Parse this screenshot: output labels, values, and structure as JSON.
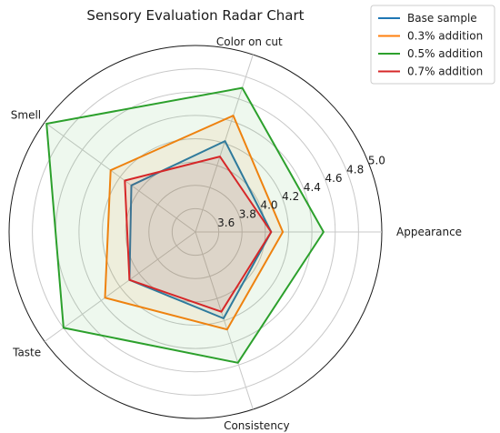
{
  "chart_data": {
    "type": "radar",
    "title": "Sensory Evaluation Radar Chart",
    "axes": [
      "Appearance",
      "Color on cut",
      "Smell",
      "Taste",
      "Consistency"
    ],
    "rlim": [
      3.4,
      5.0
    ],
    "rticks": [
      3.6,
      3.8,
      4.0,
      4.2,
      4.4,
      4.6,
      4.8,
      5.0
    ],
    "rtick_labels": [
      "3.6",
      "3.8",
      "4.0",
      "4.2",
      "4.4",
      "4.6",
      "4.8",
      "5.0"
    ],
    "grid": true,
    "legend_position": "top-right",
    "series": [
      {
        "name": "Base sample",
        "color": "#1f77b4",
        "values": [
          4.05,
          4.22,
          4.08,
          4.1,
          4.18
        ]
      },
      {
        "name": "0.3% addition",
        "color": "#ff7f0e",
        "values": [
          4.15,
          4.45,
          4.3,
          4.36,
          4.28
        ]
      },
      {
        "name": "0.5% addition",
        "color": "#2ca02c",
        "values": [
          4.5,
          4.7,
          4.98,
          4.8,
          4.58
        ]
      },
      {
        "name": "0.7% addition",
        "color": "#d62728",
        "values": [
          4.05,
          4.08,
          4.15,
          4.1,
          4.12
        ]
      }
    ]
  }
}
